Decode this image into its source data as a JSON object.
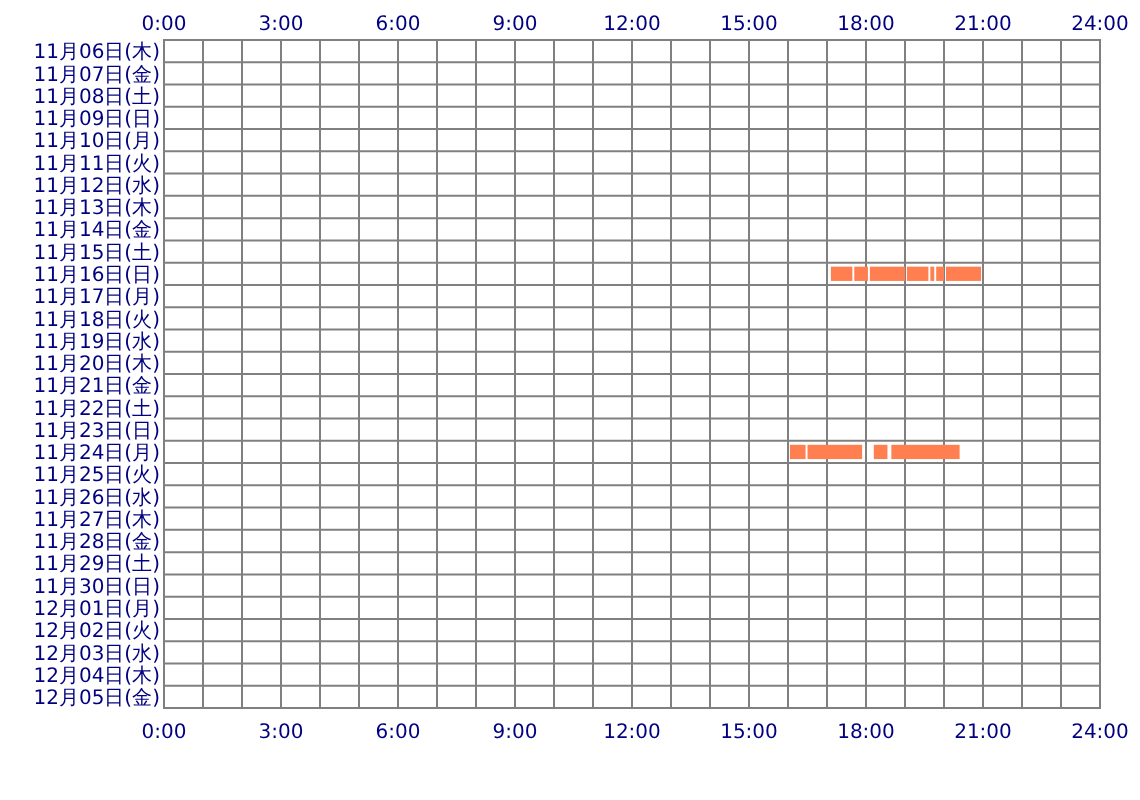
{
  "chart_data": {
    "type": "bar",
    "orientation": "horizontal",
    "grid": true,
    "categories": [
      "11月06日(木)",
      "11月07日(金)",
      "11月08日(土)",
      "11月09日(日)",
      "11月10日(月)",
      "11月11日(火)",
      "11月12日(水)",
      "11月13日(木)",
      "11月14日(金)",
      "11月15日(土)",
      "11月16日(日)",
      "11月17日(月)",
      "11月18日(火)",
      "11月19日(水)",
      "11月20日(木)",
      "11月21日(金)",
      "11月22日(土)",
      "11月23日(日)",
      "11月24日(月)",
      "11月25日(火)",
      "11月26日(水)",
      "11月27日(木)",
      "11月28日(金)",
      "11月29日(土)",
      "11月30日(日)",
      "12月01日(月)",
      "12月02日(火)",
      "12月03日(水)",
      "12月04日(木)",
      "12月05日(金)"
    ],
    "series": [
      {
        "color": "#ff7f50",
        "base": [
          null,
          null,
          null,
          null,
          null,
          null,
          null,
          null,
          null,
          null,
          17.1,
          null,
          null,
          null,
          null,
          null,
          null,
          null,
          16.05,
          null,
          null,
          null,
          null,
          null,
          null,
          null,
          null,
          null,
          null,
          null
        ],
        "values": [
          null,
          null,
          null,
          null,
          null,
          null,
          null,
          null,
          null,
          null,
          0.55,
          null,
          null,
          null,
          null,
          null,
          null,
          null,
          0.4,
          null,
          null,
          null,
          null,
          null,
          null,
          null,
          null,
          null,
          null,
          null
        ]
      },
      {
        "color": "#ff7f50",
        "base": [
          null,
          null,
          null,
          null,
          null,
          null,
          null,
          null,
          null,
          null,
          17.7,
          null,
          null,
          null,
          null,
          null,
          null,
          null,
          16.5,
          null,
          null,
          null,
          null,
          null,
          null,
          null,
          null,
          null,
          null,
          null
        ],
        "values": [
          null,
          null,
          null,
          null,
          null,
          null,
          null,
          null,
          null,
          null,
          0.35,
          null,
          null,
          null,
          null,
          null,
          null,
          null,
          1.4,
          null,
          null,
          null,
          null,
          null,
          null,
          null,
          null,
          null,
          null,
          null
        ]
      },
      {
        "color": "#ff7f50",
        "base": [
          null,
          null,
          null,
          null,
          null,
          null,
          null,
          null,
          null,
          null,
          18.1,
          null,
          null,
          null,
          null,
          null,
          null,
          null,
          18.2,
          null,
          null,
          null,
          null,
          null,
          null,
          null,
          null,
          null,
          null,
          null
        ],
        "values": [
          null,
          null,
          null,
          null,
          null,
          null,
          null,
          null,
          null,
          null,
          0.9,
          null,
          null,
          null,
          null,
          null,
          null,
          null,
          0.35,
          null,
          null,
          null,
          null,
          null,
          null,
          null,
          null,
          null,
          null,
          null
        ]
      },
      {
        "color": "#ff7f50",
        "base": [
          null,
          null,
          null,
          null,
          null,
          null,
          null,
          null,
          null,
          null,
          19.05,
          null,
          null,
          null,
          null,
          null,
          null,
          null,
          18.65,
          null,
          null,
          null,
          null,
          null,
          null,
          null,
          null,
          null,
          null,
          null
        ],
        "values": [
          null,
          null,
          null,
          null,
          null,
          null,
          null,
          null,
          null,
          null,
          0.55,
          null,
          null,
          null,
          null,
          null,
          null,
          null,
          1.75,
          null,
          null,
          null,
          null,
          null,
          null,
          null,
          null,
          null,
          null,
          null
        ]
      },
      {
        "color": "#ff7f50",
        "base": [
          null,
          null,
          null,
          null,
          null,
          null,
          null,
          null,
          null,
          null,
          19.65,
          null,
          null,
          null,
          null,
          null,
          null,
          null,
          null,
          null,
          null,
          null,
          null,
          null,
          null,
          null,
          null,
          null,
          null,
          null
        ],
        "values": [
          null,
          null,
          null,
          null,
          null,
          null,
          null,
          null,
          null,
          null,
          0.1,
          null,
          null,
          null,
          null,
          null,
          null,
          null,
          null,
          null,
          null,
          null,
          null,
          null,
          null,
          null,
          null,
          null,
          null,
          null
        ]
      },
      {
        "color": "#ff7f50",
        "base": [
          null,
          null,
          null,
          null,
          null,
          null,
          null,
          null,
          null,
          null,
          19.8,
          null,
          null,
          null,
          null,
          null,
          null,
          null,
          null,
          null,
          null,
          null,
          null,
          null,
          null,
          null,
          null,
          null,
          null,
          null
        ],
        "values": [
          null,
          null,
          null,
          null,
          null,
          null,
          null,
          null,
          null,
          null,
          0.2,
          null,
          null,
          null,
          null,
          null,
          null,
          null,
          null,
          null,
          null,
          null,
          null,
          null,
          null,
          null,
          null,
          null,
          null,
          null
        ]
      },
      {
        "color": "#ff7f50",
        "base": [
          null,
          null,
          null,
          null,
          null,
          null,
          null,
          null,
          null,
          null,
          20.05,
          null,
          null,
          null,
          null,
          null,
          null,
          null,
          null,
          null,
          null,
          null,
          null,
          null,
          null,
          null,
          null,
          null,
          null,
          null
        ],
        "values": [
          null,
          null,
          null,
          null,
          null,
          null,
          null,
          null,
          null,
          null,
          0.9,
          null,
          null,
          null,
          null,
          null,
          null,
          null,
          null,
          null,
          null,
          null,
          null,
          null,
          null,
          null,
          null,
          null,
          null,
          null
        ]
      }
    ],
    "xlim": [
      0,
      24
    ],
    "xticks": [
      {
        "value": 0,
        "label": "0:00"
      },
      {
        "value": 1,
        "label": null
      },
      {
        "value": 2,
        "label": null
      },
      {
        "value": 3,
        "label": "3:00"
      },
      {
        "value": 4,
        "label": null
      },
      {
        "value": 5,
        "label": null
      },
      {
        "value": 6,
        "label": "6:00"
      },
      {
        "value": 7,
        "label": null
      },
      {
        "value": 8,
        "label": null
      },
      {
        "value": 9,
        "label": "9:00"
      },
      {
        "value": 10,
        "label": null
      },
      {
        "value": 11,
        "label": null
      },
      {
        "value": 12,
        "label": "12:00"
      },
      {
        "value": 13,
        "label": null
      },
      {
        "value": 14,
        "label": null
      },
      {
        "value": 15,
        "label": "15:00"
      },
      {
        "value": 16,
        "label": null
      },
      {
        "value": 17,
        "label": null
      },
      {
        "value": 18,
        "label": "18:00"
      },
      {
        "value": 19,
        "label": null
      },
      {
        "value": 20,
        "label": null
      },
      {
        "value": 21,
        "label": "21:00"
      },
      {
        "value": 22,
        "label": null
      },
      {
        "value": 23,
        "label": null
      },
      {
        "value": 24,
        "label": "24:00"
      }
    ],
    "x2lim": [
      0,
      24
    ],
    "x2ticks": [
      {
        "value": 0,
        "label": "0:00"
      },
      {
        "value": 1,
        "label": null
      },
      {
        "value": 2,
        "label": null
      },
      {
        "value": 3,
        "label": "3:00"
      },
      {
        "value": 4,
        "label": null
      },
      {
        "value": 5,
        "label": null
      },
      {
        "value": 6,
        "label": "6:00"
      },
      {
        "value": 7,
        "label": null
      },
      {
        "value": 8,
        "label": null
      },
      {
        "value": 9,
        "label": "9:00"
      },
      {
        "value": 10,
        "label": null
      },
      {
        "value": 11,
        "label": null
      },
      {
        "value": 12,
        "label": "12:00"
      },
      {
        "value": 13,
        "label": null
      },
      {
        "value": 14,
        "label": null
      },
      {
        "value": 15,
        "label": "15:00"
      },
      {
        "value": 16,
        "label": null
      },
      {
        "value": 17,
        "label": null
      },
      {
        "value": 18,
        "label": "18:00"
      },
      {
        "value": 19,
        "label": null
      },
      {
        "value": 20,
        "label": null
      },
      {
        "value": 21,
        "label": "21:00"
      },
      {
        "value": 22,
        "label": null
      },
      {
        "value": 23,
        "label": null
      },
      {
        "value": 24,
        "label": "24:00"
      }
    ]
  }
}
